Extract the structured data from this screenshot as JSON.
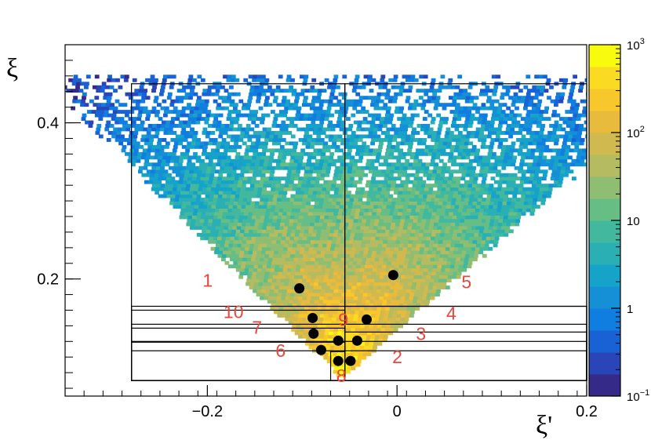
{
  "chart_data": {
    "type": "heatmap",
    "title": "",
    "xlabel": "ξ'",
    "ylabel": "ξ",
    "xlim": [
      -0.35,
      0.2
    ],
    "ylim": [
      0.05,
      0.5
    ],
    "x_ticks": [
      {
        "value": -0.2,
        "label": "−0.2"
      },
      {
        "value": 0,
        "label": "0"
      },
      {
        "value": 0.2,
        "label": "0.2"
      }
    ],
    "y_ticks": [
      {
        "value": 0.2,
        "label": "0.2"
      },
      {
        "value": 0.4,
        "label": "0.4"
      }
    ],
    "colorbar": {
      "scale": "log",
      "range": [
        0.1,
        1000
      ],
      "ticks": [
        {
          "value": 0.1,
          "base": "10",
          "exp": "−1"
        },
        {
          "value": 1,
          "base": "1",
          "exp": ""
        },
        {
          "value": 10,
          "base": "10",
          "exp": ""
        },
        {
          "value": 100,
          "base": "10",
          "exp": "2"
        },
        {
          "value": 1000,
          "base": "10",
          "exp": "3"
        }
      ],
      "palette": [
        "#352a87",
        "#2a45b8",
        "#1962d6",
        "#0f7ee0",
        "#1590d6",
        "#16a3c9",
        "#2ab0b4",
        "#42b99e",
        "#67be85",
        "#8fbd72",
        "#b4bb60",
        "#d0b94e",
        "#e8bb3c",
        "#f8c72c",
        "#fbdb22",
        "#f9fb0e"
      ]
    },
    "distribution": {
      "cone_vertex": [
        -0.06,
        0.07
      ],
      "left_slope": -1.22,
      "right_slope": 1.05,
      "upper_edge": 0.46
    },
    "bin_boxes": [
      {
        "x": [
          -0.28,
          -0.055
        ],
        "y": [
          0.07,
          0.45
        ]
      },
      {
        "x": [
          -0.055,
          0.2
        ],
        "y": [
          0.07,
          0.45
        ]
      },
      {
        "x": [
          -0.28,
          0.2
        ],
        "y": [
          0.07,
          0.165
        ]
      },
      {
        "x": [
          -0.28,
          0.2
        ],
        "y": [
          0.07,
          0.142
        ]
      },
      {
        "x": [
          -0.28,
          0.2
        ],
        "y": [
          0.07,
          0.12
        ]
      },
      {
        "x": [
          -0.28,
          0.2
        ],
        "y": [
          0.07,
          0.108
        ]
      },
      {
        "x": [
          -0.28,
          -0.055
        ],
        "y": [
          0.07,
          0.16
        ]
      },
      {
        "x": [
          -0.28,
          -0.055
        ],
        "y": [
          0.07,
          0.137
        ]
      },
      {
        "x": [
          -0.28,
          -0.055
        ],
        "y": [
          0.07,
          0.119
        ]
      },
      {
        "x": [
          -0.055,
          0.2
        ],
        "y": [
          0.07,
          0.132
        ]
      },
      {
        "x": [
          -0.055,
          0.2
        ],
        "y": [
          0.07,
          0.165
        ]
      },
      {
        "x": [
          -0.07,
          -0.055
        ],
        "y": [
          0.07,
          0.107
        ]
      }
    ],
    "bin_labels": [
      {
        "text": "1",
        "x": -0.205,
        "y": 0.19
      },
      {
        "text": "2",
        "x": -0.005,
        "y": 0.092
      },
      {
        "text": "3",
        "x": 0.02,
        "y": 0.122
      },
      {
        "text": "4",
        "x": 0.052,
        "y": 0.148
      },
      {
        "text": "5",
        "x": 0.068,
        "y": 0.188
      },
      {
        "text": "6",
        "x": -0.128,
        "y": 0.1
      },
      {
        "text": "7",
        "x": -0.153,
        "y": 0.13
      },
      {
        "text": "8",
        "x": -0.064,
        "y": 0.068
      },
      {
        "text": "9",
        "x": -0.062,
        "y": 0.14
      },
      {
        "text": "10",
        "x": -0.183,
        "y": 0.15
      }
    ],
    "points": [
      {
        "x": -0.103,
        "y": 0.188
      },
      {
        "x": -0.004,
        "y": 0.205
      },
      {
        "x": -0.089,
        "y": 0.15
      },
      {
        "x": -0.032,
        "y": 0.148
      },
      {
        "x": -0.088,
        "y": 0.13
      },
      {
        "x": -0.062,
        "y": 0.121
      },
      {
        "x": -0.042,
        "y": 0.121
      },
      {
        "x": -0.08,
        "y": 0.109
      },
      {
        "x": -0.062,
        "y": 0.095
      },
      {
        "x": -0.049,
        "y": 0.095
      }
    ],
    "label_color": "#e8463c",
    "point_color": "#000000"
  }
}
